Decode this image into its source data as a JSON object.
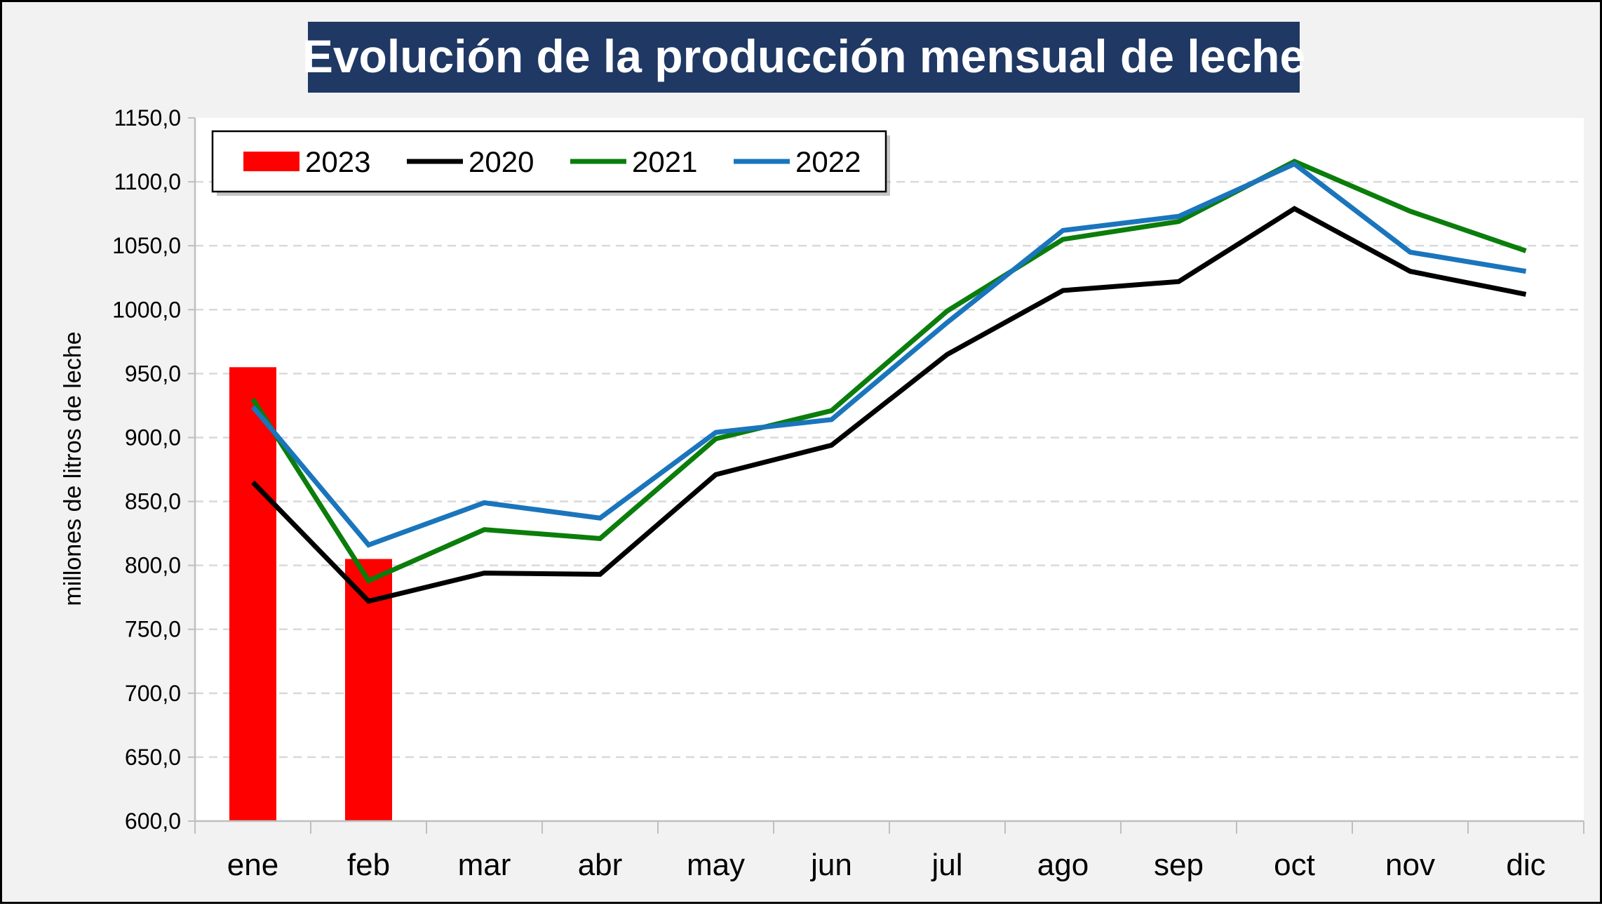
{
  "colors": {
    "frame_bg": "#f2f2f2",
    "title_bg": "#1f3864",
    "title_text": "#ffffff",
    "grid": "#d9d9d9"
  },
  "chart_data": {
    "type": "bar+line",
    "title": "Evolución de la producción mensual de leche",
    "ylabel": "millones de litros de leche",
    "xlabel": "",
    "ylim": [
      600,
      1150
    ],
    "y_tick_step": 50,
    "y_tick_labels": [
      "600,0",
      "650,0",
      "700,0",
      "750,0",
      "800,0",
      "850,0",
      "900,0",
      "950,0",
      "1000,0",
      "1050,0",
      "1100,0",
      "1150,0"
    ],
    "grid": "horizontal dashed",
    "legend_position": "top-left",
    "categories": [
      "ene",
      "feb",
      "mar",
      "abr",
      "may",
      "jun",
      "jul",
      "ago",
      "sep",
      "oct",
      "nov",
      "dic"
    ],
    "bars": [
      {
        "name": "2023",
        "color": "#ff0000",
        "values": [
          955,
          805
        ]
      }
    ],
    "lines": [
      {
        "name": "2020",
        "color": "#000000",
        "values": [
          865,
          772,
          794,
          793,
          871,
          894,
          965,
          1015,
          1022,
          1079,
          1030,
          1012
        ]
      },
      {
        "name": "2021",
        "color": "#0b7d0b",
        "values": [
          930,
          788,
          828,
          821,
          899,
          921,
          999,
          1055,
          1069,
          1116,
          1077,
          1046
        ]
      },
      {
        "name": "2022",
        "color": "#1a75bc",
        "values": [
          924,
          816,
          849,
          837,
          904,
          914,
          990,
          1062,
          1073,
          1114,
          1045,
          1030
        ]
      }
    ]
  }
}
